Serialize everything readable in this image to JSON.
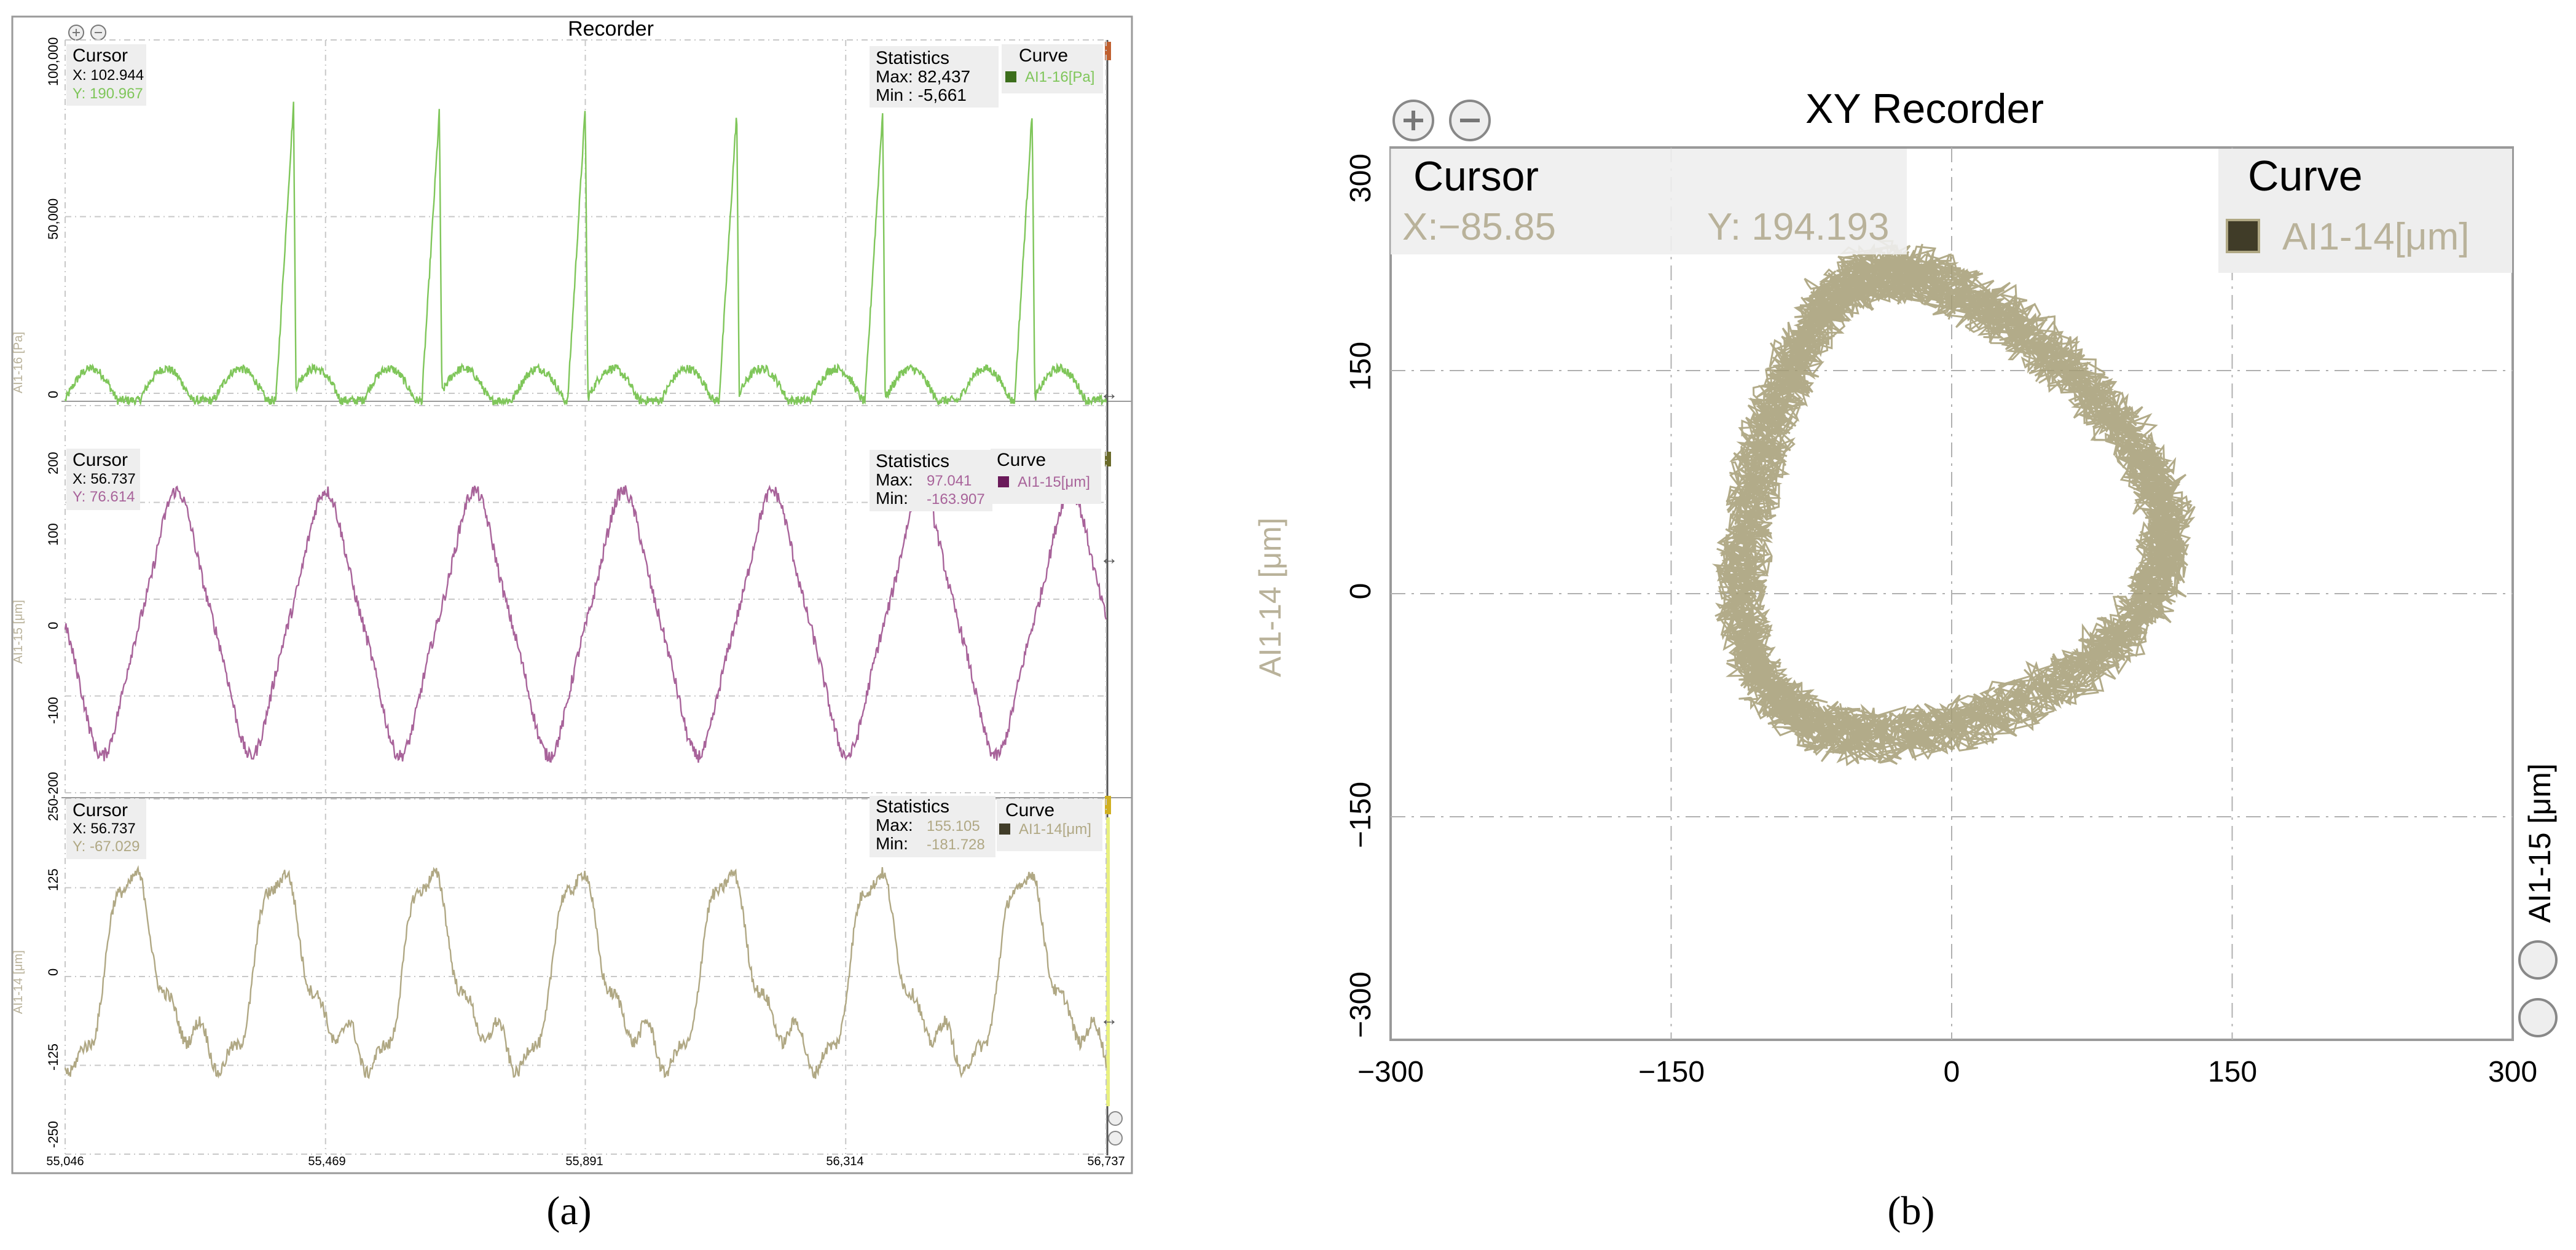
{
  "colors": {
    "green": "#7fc65a",
    "purple": "#a8639a",
    "olive": "#b0a884",
    "swatch_green": "#3c6e1c",
    "swatch_purple": "#6a1a5a",
    "swatch_olive": "#403c28",
    "label_gray": "#b9b29a",
    "grid": "#c8c8c8",
    "text": "#000000",
    "panel_border": "#9a9a9a"
  },
  "icons": {
    "zoom_in": "zoom-in-icon",
    "zoom_out": "zoom-out-icon",
    "resize_arrow": "horizontal-arrow-icon"
  },
  "panel_a": {
    "caption": "(a)",
    "title": "Recorder",
    "x_tick_labels": [
      "55,046",
      "55,469",
      "55,891",
      "56,314",
      "56,737"
    ],
    "strips": [
      {
        "axis_label": "AI1-16 [Pa]",
        "cursor_title": "Cursor",
        "cursor_x": "X: 102.944",
        "cursor_y": "Y: 190.967",
        "stats_title": "Statistics",
        "stats_max_label": "Max: 82,437",
        "stats_max_value": "",
        "stats_min_label": "Min : -5,661",
        "stats_min_value": "",
        "curve_title": "Curve",
        "curve_name": "AI1-16[Pa]",
        "y_tick_labels": [
          "100,000",
          "50,000",
          "0"
        ]
      },
      {
        "axis_label": "AI1-15 [μm]",
        "cursor_title": "Cursor",
        "cursor_x": "X: 56.737",
        "cursor_y": "Y: 76.614",
        "stats_title": "Statistics",
        "stats_max_label": "Max:",
        "stats_max_value": "97.041",
        "stats_min_label": "Min:",
        "stats_min_value": "-163.907",
        "curve_title": "Curve",
        "curve_name": "AI1-15[μm]",
        "y_tick_labels": [
          "200",
          "100",
          "0",
          "-100",
          "-200"
        ]
      },
      {
        "axis_label": "AI1-14 [μm]",
        "cursor_title": "Cursor",
        "cursor_x": "X: 56.737",
        "cursor_y": "Y: -67.029",
        "stats_title": "Statistics",
        "stats_max_label": "Max:",
        "stats_max_value": "155.105",
        "stats_min_label": "Min:",
        "stats_min_value": "-181.728",
        "curve_title": "Curve",
        "curve_name": "AI1-14[μm]",
        "y_tick_labels": [
          "250",
          "125",
          "0",
          "-125",
          "-250"
        ]
      }
    ]
  },
  "panel_b": {
    "caption": "(b)",
    "title": "XY Recorder",
    "cursor_title": "Cursor",
    "cursor_x": "X:−85.85",
    "cursor_y": "Y: 194.193",
    "curve_title": "Curve",
    "curve_name": "AI1-14[μm]",
    "y_axis_label": "AI1-14 [μm]",
    "right_axis_label": "AI1-15 [μm]",
    "x_tick_labels": [
      "−300",
      "−150",
      "0",
      "150",
      "300"
    ],
    "y_tick_labels": [
      "300",
      "150",
      "0",
      "−150",
      "−300"
    ]
  },
  "chart_data": [
    {
      "type": "line",
      "chart": "Recorder strip 1",
      "series_name": "AI1-16[Pa]",
      "xlim": [
        55.046,
        56.737
      ],
      "ylim": [
        0,
        100000
      ],
      "y_ticks": [
        0,
        50000,
        100000
      ],
      "x_ticks": [
        55.046,
        55.469,
        55.891,
        56.314,
        56.737
      ],
      "grid": true,
      "pulse_times": [
        55.307,
        55.417,
        55.541,
        55.654,
        55.778,
        55.891,
        56.016,
        56.137,
        56.253,
        56.374,
        56.494,
        56.617
      ],
      "pulse_peaks": [
        10000,
        82000,
        9000,
        80000,
        9000,
        81000,
        9000,
        80000,
        9500,
        80000,
        9500,
        80000
      ],
      "stats": {
        "max": 82437,
        "min": -5661
      }
    },
    {
      "type": "line",
      "chart": "Recorder strip 2",
      "series_name": "AI1-15[μm]",
      "xlim": [
        55.046,
        56.737
      ],
      "ylim": [
        -200,
        200
      ],
      "y_ticks": [
        -200,
        -100,
        0,
        100,
        200
      ],
      "x_ticks": [
        55.046,
        55.469,
        55.891,
        56.314,
        56.737
      ],
      "grid": true,
      "cycle_period": 0.242,
      "peak_times": [
        55.23,
        55.469,
        55.711,
        55.953,
        56.195,
        56.437,
        56.679
      ],
      "amplitude_approx": 125,
      "offset_approx": -25,
      "stats": {
        "max": 97.041,
        "min": -163.907
      }
    },
    {
      "type": "line",
      "chart": "Recorder strip 3",
      "series_name": "AI1-14[μm]",
      "xlim": [
        55.046,
        56.737
      ],
      "ylim": [
        -250,
        250
      ],
      "y_ticks": [
        -250,
        -125,
        0,
        125,
        250
      ],
      "x_ticks": [
        55.046,
        55.469,
        55.891,
        56.314,
        56.737
      ],
      "grid": true,
      "cycle_period": 0.242,
      "amplitude_approx": 170,
      "offset_approx": -15,
      "stats": {
        "max": 155.105,
        "min": -181.728
      }
    },
    {
      "type": "scatter",
      "chart": "XY Recorder",
      "series_name": "AI1-14[μm]",
      "x_label": "",
      "y_label": "AI1-14 [μm]",
      "right_label": "AI1-15 [μm]",
      "xlim": [
        -300,
        300
      ],
      "ylim": [
        -300,
        300
      ],
      "x_ticks": [
        -300,
        -150,
        0,
        150,
        300
      ],
      "y_ticks": [
        -300,
        -150,
        0,
        150,
        300
      ],
      "grid": true,
      "orbit_center": [
        -10,
        60
      ],
      "orbit_radius_x": [
        105,
        115
      ],
      "orbit_radius_y": [
        145,
        165
      ],
      "orbit_extent": {
        "x": [
          -170,
          110
        ],
        "y": [
          -95,
          230
        ]
      }
    }
  ]
}
